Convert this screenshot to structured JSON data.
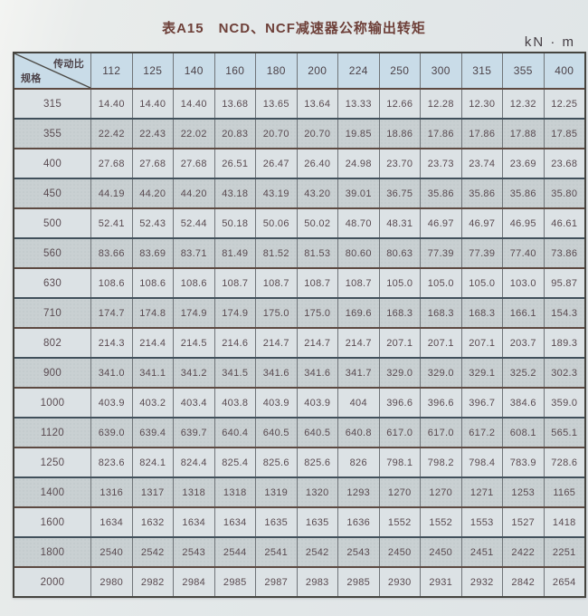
{
  "page": {
    "title": "表A15　NCD、NCF减速器公称输出转矩",
    "unit": "kN · m"
  },
  "table": {
    "corner": {
      "top_right": "传动比",
      "bottom_left": "规格"
    },
    "columns": [
      "112",
      "125",
      "140",
      "160",
      "180",
      "200",
      "224",
      "250",
      "300",
      "315",
      "355",
      "400"
    ],
    "rows": [
      {
        "spec": "315",
        "values": [
          "14.40",
          "14.40",
          "14.40",
          "13.68",
          "13.65",
          "13.64",
          "13.33",
          "12.66",
          "12.28",
          "12.30",
          "12.32",
          "12.25"
        ]
      },
      {
        "spec": "355",
        "values": [
          "22.42",
          "22.43",
          "22.02",
          "20.83",
          "20.70",
          "20.70",
          "19.85",
          "18.86",
          "17.86",
          "17.86",
          "17.88",
          "17.85"
        ]
      },
      {
        "spec": "400",
        "values": [
          "27.68",
          "27.68",
          "27.68",
          "26.51",
          "26.47",
          "26.40",
          "24.98",
          "23.70",
          "23.73",
          "23.74",
          "23.69",
          "23.68"
        ]
      },
      {
        "spec": "450",
        "values": [
          "44.19",
          "44.20",
          "44.20",
          "43.18",
          "43.19",
          "43.20",
          "39.01",
          "36.75",
          "35.86",
          "35.86",
          "35.86",
          "35.80"
        ]
      },
      {
        "spec": "500",
        "values": [
          "52.41",
          "52.43",
          "52.44",
          "50.18",
          "50.06",
          "50.02",
          "48.70",
          "48.31",
          "46.97",
          "46.97",
          "46.95",
          "46.61"
        ]
      },
      {
        "spec": "560",
        "values": [
          "83.66",
          "83.69",
          "83.71",
          "81.49",
          "81.52",
          "81.53",
          "80.60",
          "80.63",
          "77.39",
          "77.39",
          "77.40",
          "73.86"
        ]
      },
      {
        "spec": "630",
        "values": [
          "108.6",
          "108.6",
          "108.6",
          "108.7",
          "108.7",
          "108.7",
          "108.7",
          "105.0",
          "105.0",
          "105.0",
          "103.0",
          "95.87"
        ]
      },
      {
        "spec": "710",
        "values": [
          "174.7",
          "174.8",
          "174.9",
          "174.9",
          "175.0",
          "175.0",
          "169.6",
          "168.3",
          "168.3",
          "168.3",
          "166.1",
          "154.3"
        ]
      },
      {
        "spec": "802",
        "values": [
          "214.3",
          "214.4",
          "214.5",
          "214.6",
          "214.7",
          "214.7",
          "214.7",
          "207.1",
          "207.1",
          "207.1",
          "203.7",
          "189.3"
        ]
      },
      {
        "spec": "900",
        "values": [
          "341.0",
          "341.1",
          "341.2",
          "341.5",
          "341.6",
          "341.6",
          "341.7",
          "329.0",
          "329.0",
          "329.1",
          "325.2",
          "302.3"
        ]
      },
      {
        "spec": "1000",
        "values": [
          "403.9",
          "403.2",
          "403.4",
          "403.8",
          "403.9",
          "403.9",
          "404",
          "396.6",
          "396.6",
          "396.7",
          "384.6",
          "359.0"
        ]
      },
      {
        "spec": "1120",
        "values": [
          "639.0",
          "639.4",
          "639.7",
          "640.4",
          "640.5",
          "640.5",
          "640.8",
          "617.0",
          "617.0",
          "617.2",
          "608.1",
          "565.1"
        ]
      },
      {
        "spec": "1250",
        "values": [
          "823.6",
          "824.1",
          "824.4",
          "825.4",
          "825.6",
          "825.6",
          "826",
          "798.1",
          "798.2",
          "798.4",
          "783.9",
          "728.6"
        ]
      },
      {
        "spec": "1400",
        "values": [
          "1316",
          "1317",
          "1318",
          "1318",
          "1319",
          "1320",
          "1293",
          "1270",
          "1270",
          "1271",
          "1253",
          "1165"
        ]
      },
      {
        "spec": "1600",
        "values": [
          "1634",
          "1632",
          "1634",
          "1634",
          "1635",
          "1635",
          "1636",
          "1552",
          "1552",
          "1553",
          "1527",
          "1418"
        ]
      },
      {
        "spec": "1800",
        "values": [
          "2540",
          "2542",
          "2543",
          "2544",
          "2541",
          "2542",
          "2543",
          "2450",
          "2450",
          "2451",
          "2422",
          "2251"
        ]
      },
      {
        "spec": "2000",
        "values": [
          "2980",
          "2982",
          "2984",
          "2985",
          "2987",
          "2983",
          "2985",
          "2930",
          "2931",
          "2932",
          "2842",
          "2654"
        ]
      }
    ]
  },
  "colors": {
    "title_text": "#6e4039",
    "header_bg": "#c9dce8",
    "row_light_bg": "#dce2e5",
    "row_dark_bg": "#c9d0d2",
    "cell_text": "#594a50",
    "border_dark": "#45443f"
  }
}
